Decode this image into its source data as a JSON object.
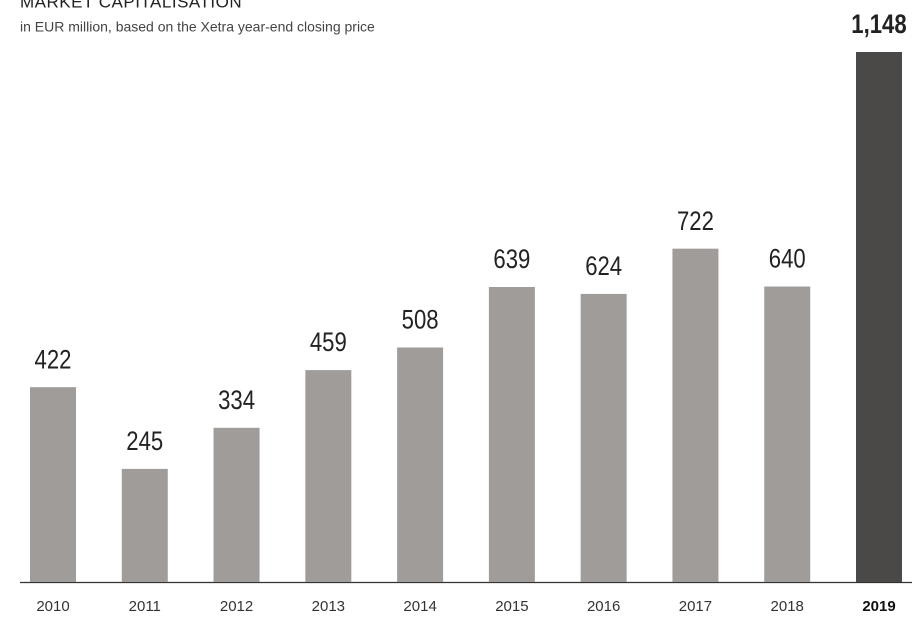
{
  "chart_data": {
    "type": "bar",
    "title": "MARKET CAPITALISATION",
    "subtitle": "in EUR million, based on the Xetra year-end closing price",
    "categories": [
      "2010",
      "2011",
      "2012",
      "2013",
      "2014",
      "2015",
      "2016",
      "2017",
      "2018",
      "2019"
    ],
    "values": [
      422,
      245,
      334,
      459,
      508,
      639,
      624,
      722,
      640,
      1148
    ],
    "value_labels": [
      "422",
      "245",
      "334",
      "459",
      "508",
      "639",
      "624",
      "722",
      "640",
      "1,148"
    ],
    "colors": [
      "#a09c9a",
      "#a09c9a",
      "#a09c9a",
      "#a09c9a",
      "#a09c9a",
      "#a09c9a",
      "#a09c9a",
      "#a09c9a",
      "#a09c9a",
      "#4b4947"
    ]
  }
}
